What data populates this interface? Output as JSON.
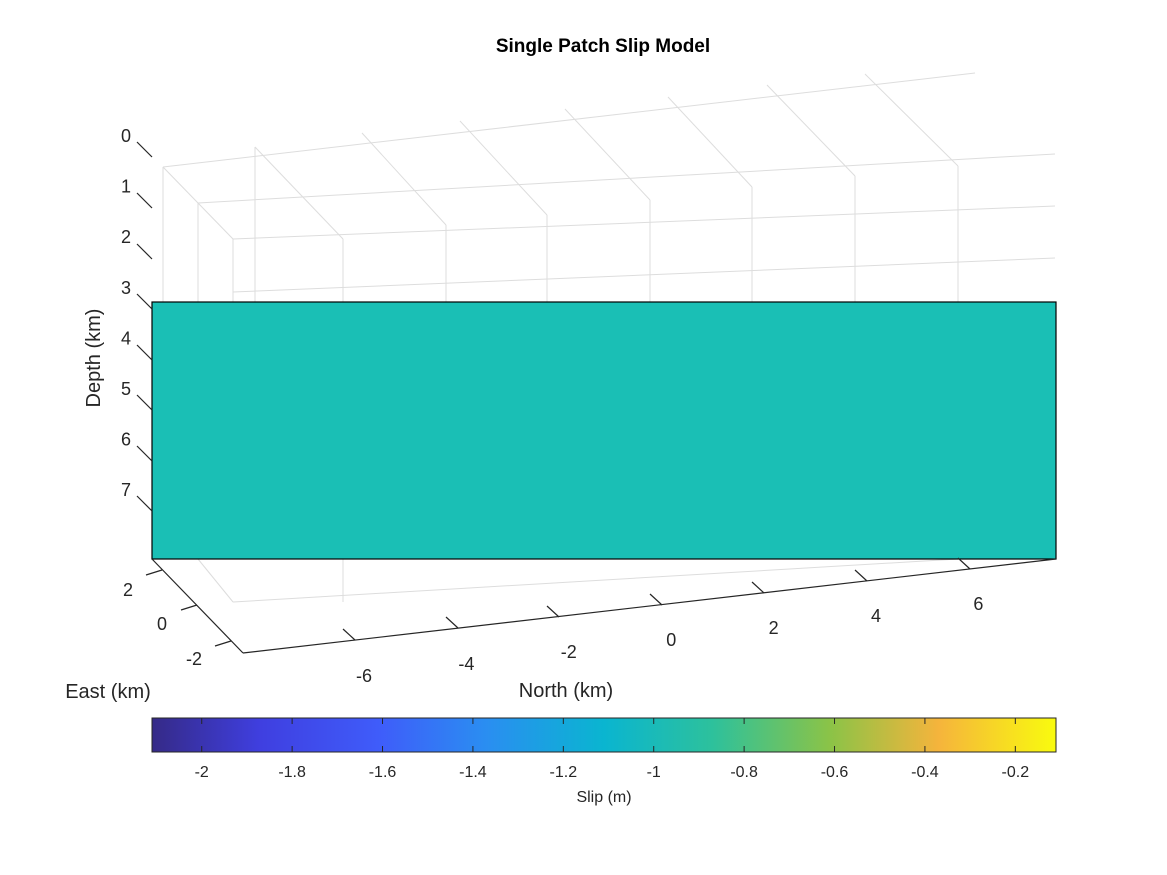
{
  "chart_data": {
    "type": "3d-surface",
    "title": "Single Patch Slip Model",
    "xlabel": "North (km)",
    "ylabel": "East (km)",
    "zlabel": "Depth (km)",
    "north_ticks": [
      "-6",
      "-4",
      "-2",
      "0",
      "2",
      "4",
      "6"
    ],
    "east_ticks": [
      "2",
      "0",
      "-2"
    ],
    "depth_ticks": [
      "0",
      "1",
      "2",
      "3",
      "4",
      "5",
      "6",
      "7"
    ],
    "patch": {
      "north_range": [
        -8.7,
        9
      ],
      "depth_range": [
        3.3,
        8.3
      ],
      "slip": -1.1,
      "color": "#1abfb5",
      "edge_color": "#000000"
    },
    "colorbar": {
      "label": "Slip (m)",
      "ticks": [
        "-2",
        "-1.8",
        "-1.6",
        "-1.4",
        "-1.2",
        "-1",
        "-0.8",
        "-0.6",
        "-0.4",
        "-0.2"
      ],
      "tick_values": [
        -2,
        -1.8,
        -1.6,
        -1.4,
        -1.2,
        -1,
        -0.8,
        -0.6,
        -0.4,
        -0.2
      ],
      "range": [
        -2.11,
        -0.11
      ],
      "colormap": "parula",
      "location": "bottom"
    }
  }
}
